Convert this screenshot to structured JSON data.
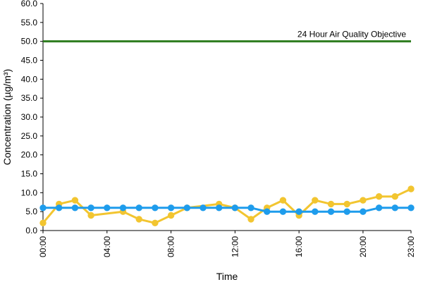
{
  "chart_data": {
    "type": "line",
    "title": "",
    "xlabel": "Time",
    "ylabel": "Concentration (µg/m³)",
    "ylim": [
      0,
      60
    ],
    "xlim": [
      0,
      23
    ],
    "y_ticks": [
      "0.0",
      "5.0",
      "10.0",
      "15.0",
      "20.0",
      "25.0",
      "30.0",
      "35.0",
      "40.0",
      "45.0",
      "50.0",
      "55.0",
      "60.0"
    ],
    "x_ticks": [
      {
        "x": 0,
        "label": "00:00"
      },
      {
        "x": 4,
        "label": "04:00"
      },
      {
        "x": 8,
        "label": "08:00"
      },
      {
        "x": 12,
        "label": "12:00"
      },
      {
        "x": 16,
        "label": "16:00"
      },
      {
        "x": 20,
        "label": "20:00"
      },
      {
        "x": 23,
        "label": "23:00"
      }
    ],
    "grid": false,
    "x": [
      0,
      1,
      2,
      3,
      4,
      5,
      6,
      7,
      8,
      9,
      10,
      11,
      12,
      13,
      14,
      15,
      16,
      17,
      18,
      19,
      20,
      21,
      22,
      23
    ],
    "series": [
      {
        "color": "#f2c530",
        "values": [
          2,
          7,
          8,
          4,
          null,
          5,
          3,
          2,
          4,
          6,
          null,
          7,
          6,
          3,
          6,
          8,
          4,
          8,
          7,
          7,
          8,
          9,
          9,
          11
        ]
      },
      {
        "color": "#1e9cec",
        "values": [
          6,
          6,
          6,
          6,
          6,
          6,
          6,
          6,
          6,
          6,
          6,
          6,
          6,
          6,
          5,
          5,
          5,
          5,
          5,
          5,
          5,
          6,
          6,
          6
        ]
      }
    ],
    "reference_line": {
      "y": 50,
      "label": "24 Hour Air Quality Objective",
      "color": "#2e7d1f"
    },
    "legend": "none"
  }
}
